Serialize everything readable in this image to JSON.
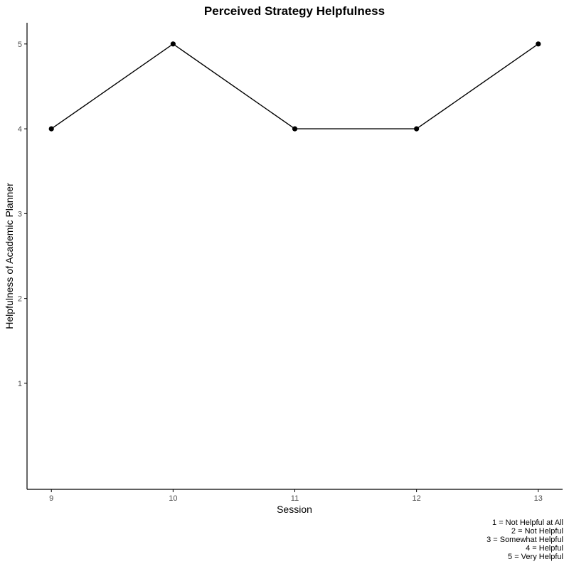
{
  "chart_data": {
    "type": "line",
    "title": "Perceived Strategy Helpfulness",
    "xlabel": "Session",
    "ylabel": "Helpfulness of Academic Planner",
    "x": [
      9,
      10,
      11,
      12,
      13
    ],
    "series": [
      {
        "values": [
          4,
          5,
          4,
          4,
          5
        ]
      }
    ],
    "xticks": [
      "9",
      "10",
      "11",
      "12",
      "13"
    ],
    "yticks": [
      "1",
      "2",
      "3",
      "4",
      "5"
    ],
    "xlim": [
      8.8,
      13.2
    ],
    "ylim": [
      -0.25,
      5.25
    ],
    "grid": false,
    "caption": [
      "1 = Not Helpful at All",
      "2 = Not Helpful",
      "3 = Somewhat Helpful",
      "4 = Helpful",
      "5 = Very Helpful"
    ],
    "colors": {
      "line": "#000000",
      "point": "#000000",
      "axis": "#000000",
      "tick_text": "#4d4d4d"
    }
  }
}
